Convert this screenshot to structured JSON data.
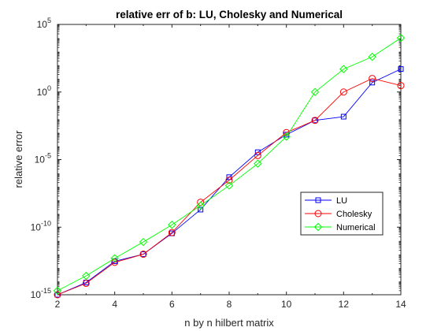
{
  "chart_data": {
    "type": "line",
    "title": "relative err of b: LU, Cholesky and Numerical",
    "xlabel": "n by n hilbert matrix",
    "ylabel": "relative error",
    "xlim": [
      2,
      14
    ],
    "ylim": [
      1e-15,
      100000.0
    ],
    "yscale": "log",
    "x_ticks": [
      2,
      4,
      6,
      8,
      10,
      12,
      14
    ],
    "y_tick_exponents": [
      -15,
      -10,
      -5,
      0,
      5
    ],
    "grid": false,
    "legend_position": "right, lower middle",
    "x": [
      2,
      3,
      4,
      5,
      6,
      7,
      8,
      9,
      10,
      11,
      12,
      13,
      14
    ],
    "series": [
      {
        "name": "LU",
        "color": "#0000ff",
        "marker": "square",
        "values": [
          1e-15,
          8e-15,
          3e-13,
          1e-12,
          3.5e-11,
          2e-09,
          5e-07,
          3.5e-05,
          0.0007,
          0.008,
          0.015,
          5,
          50.0
        ]
      },
      {
        "name": "Cholesky",
        "color": "#ff0000",
        "marker": "circle",
        "values": [
          1e-15,
          7e-15,
          2.5e-13,
          1e-12,
          4e-11,
          7e-09,
          3e-07,
          2e-05,
          0.001,
          0.008,
          1,
          10.0,
          3
        ]
      },
      {
        "name": "Numerical",
        "color": "#00ff00",
        "marker": "diamond",
        "values": [
          2e-15,
          2.5e-14,
          5e-13,
          8e-12,
          1.5e-10,
          4e-09,
          1.2e-07,
          5e-06,
          0.0005,
          1,
          50.0,
          400.0,
          10000.0
        ]
      }
    ]
  }
}
